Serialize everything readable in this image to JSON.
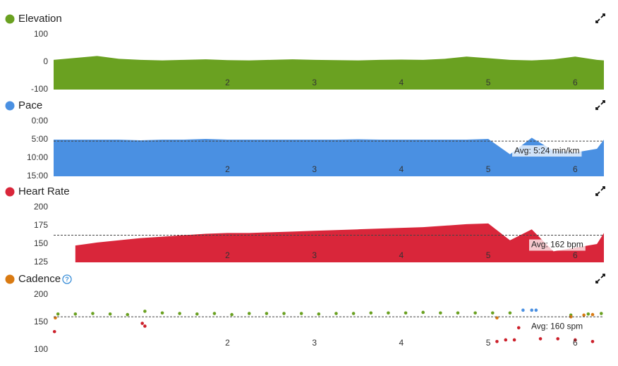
{
  "chart_data": [
    {
      "type": "area",
      "title": "Elevation",
      "color": "#6aa121",
      "x": [
        0,
        0.25,
        0.5,
        0.75,
        1,
        1.25,
        1.5,
        1.75,
        2,
        2.25,
        2.5,
        2.75,
        3,
        3.25,
        3.5,
        3.75,
        4,
        4.25,
        4.5,
        4.75,
        5,
        5.25,
        5.5,
        5.75,
        6,
        6.25,
        6.33
      ],
      "values": [
        8,
        15,
        22,
        12,
        8,
        6,
        8,
        10,
        7,
        6,
        8,
        10,
        8,
        7,
        6,
        8,
        9,
        8,
        12,
        20,
        14,
        8,
        6,
        10,
        20,
        8,
        6
      ],
      "xlim": [
        0,
        6.33
      ],
      "xticks": [
        2,
        3,
        4,
        5,
        6
      ],
      "ylim": [
        -100,
        100
      ],
      "yticks": [
        -100,
        0,
        100
      ]
    },
    {
      "type": "area",
      "title": "Pace",
      "color": "#4a90e2",
      "invert": true,
      "x": [
        0,
        0.25,
        0.5,
        0.75,
        1,
        1.25,
        1.5,
        1.75,
        2,
        2.25,
        2.5,
        2.75,
        3,
        3.25,
        3.5,
        3.75,
        4,
        4.25,
        4.5,
        4.75,
        5,
        5.25,
        5.5,
        5.75,
        6,
        6.25,
        6.33
      ],
      "values": [
        5,
        5,
        5,
        5,
        5.2,
        5,
        5,
        4.8,
        5,
        5,
        5,
        5,
        5,
        5,
        4.9,
        5,
        5,
        5,
        5,
        5,
        4.8,
        9,
        4.5,
        8,
        8.5,
        7.5,
        5
      ],
      "xlim": [
        0,
        6.33
      ],
      "xticks": [
        2,
        3,
        4,
        5,
        6
      ],
      "ylim": [
        0,
        15
      ],
      "yticks": [
        {
          "value": 0,
          "label": "0:00"
        },
        {
          "value": 5,
          "label": "5:00"
        },
        {
          "value": 10,
          "label": "10:00"
        },
        {
          "value": 15,
          "label": "15:00"
        }
      ],
      "avg": {
        "value": 5.4,
        "label": "Avg: 5:24 min/km"
      }
    },
    {
      "type": "area",
      "title": "Heart Rate",
      "color": "#d9263a",
      "x": [
        0,
        0.25,
        0.5,
        0.75,
        1,
        1.25,
        1.5,
        1.75,
        2,
        2.25,
        2.5,
        2.75,
        3,
        3.25,
        3.5,
        3.75,
        4,
        4.25,
        4.5,
        4.75,
        5,
        5.25,
        5.5,
        5.75,
        6,
        6.25,
        6.33
      ],
      "values": [
        null,
        148,
        152,
        155,
        158,
        160,
        162,
        164,
        165,
        165,
        166,
        167,
        168,
        169,
        170,
        171,
        172,
        173,
        175,
        177,
        178,
        155,
        170,
        140,
        145,
        150,
        165
      ],
      "xlim": [
        0,
        6.33
      ],
      "xticks": [
        2,
        3,
        4,
        5,
        6
      ],
      "ylim": [
        125,
        200
      ],
      "yticks": [
        125,
        150,
        175,
        200
      ],
      "avg": {
        "value": 162,
        "label": "Avg: 162 bpm"
      }
    },
    {
      "type": "scatter",
      "title": "Cadence",
      "color": "#d97a12",
      "series": [
        {
          "color": "#6aa121",
          "x": [
            0.05,
            0.25,
            0.45,
            0.65,
            0.85,
            1.05,
            1.25,
            1.45,
            1.65,
            1.85,
            2.05,
            2.25,
            2.45,
            2.65,
            2.85,
            3.05,
            3.25,
            3.45,
            3.65,
            3.85,
            4.05,
            4.25,
            4.45,
            4.65,
            4.85,
            5.05,
            5.25,
            5.95,
            6.15,
            6.3
          ],
          "values": [
            165,
            165,
            166,
            165,
            164,
            170,
            167,
            166,
            165,
            166,
            164,
            166,
            166,
            166,
            166,
            165,
            166,
            166,
            167,
            167,
            167,
            168,
            167,
            167,
            167,
            167,
            167,
            163,
            165,
            166
          ]
        },
        {
          "color": "#cc1f2a",
          "x": [
            0.01,
            1.02,
            1.05,
            5.1,
            5.2,
            5.3,
            5.35,
            5.6,
            5.8,
            6.0,
            6.2
          ],
          "values": [
            133,
            148,
            143,
            115,
            118,
            118,
            140,
            120,
            120,
            118,
            115
          ]
        },
        {
          "color": "#4a90e2",
          "x": [
            5.4,
            5.5,
            5.55
          ],
          "values": [
            172,
            172,
            172
          ]
        },
        {
          "color": "#d97a12",
          "x": [
            0.02,
            5.1,
            5.95,
            6.1,
            6.2
          ],
          "values": [
            158,
            158,
            160,
            163,
            164
          ]
        }
      ],
      "xlim": [
        0,
        6.33
      ],
      "xticks": [
        2,
        3,
        4,
        5,
        6
      ],
      "ylim": [
        100,
        200
      ],
      "yticks": [
        100,
        150,
        200
      ],
      "avg": {
        "value": 160,
        "label": "Avg: 160 spm"
      }
    }
  ]
}
